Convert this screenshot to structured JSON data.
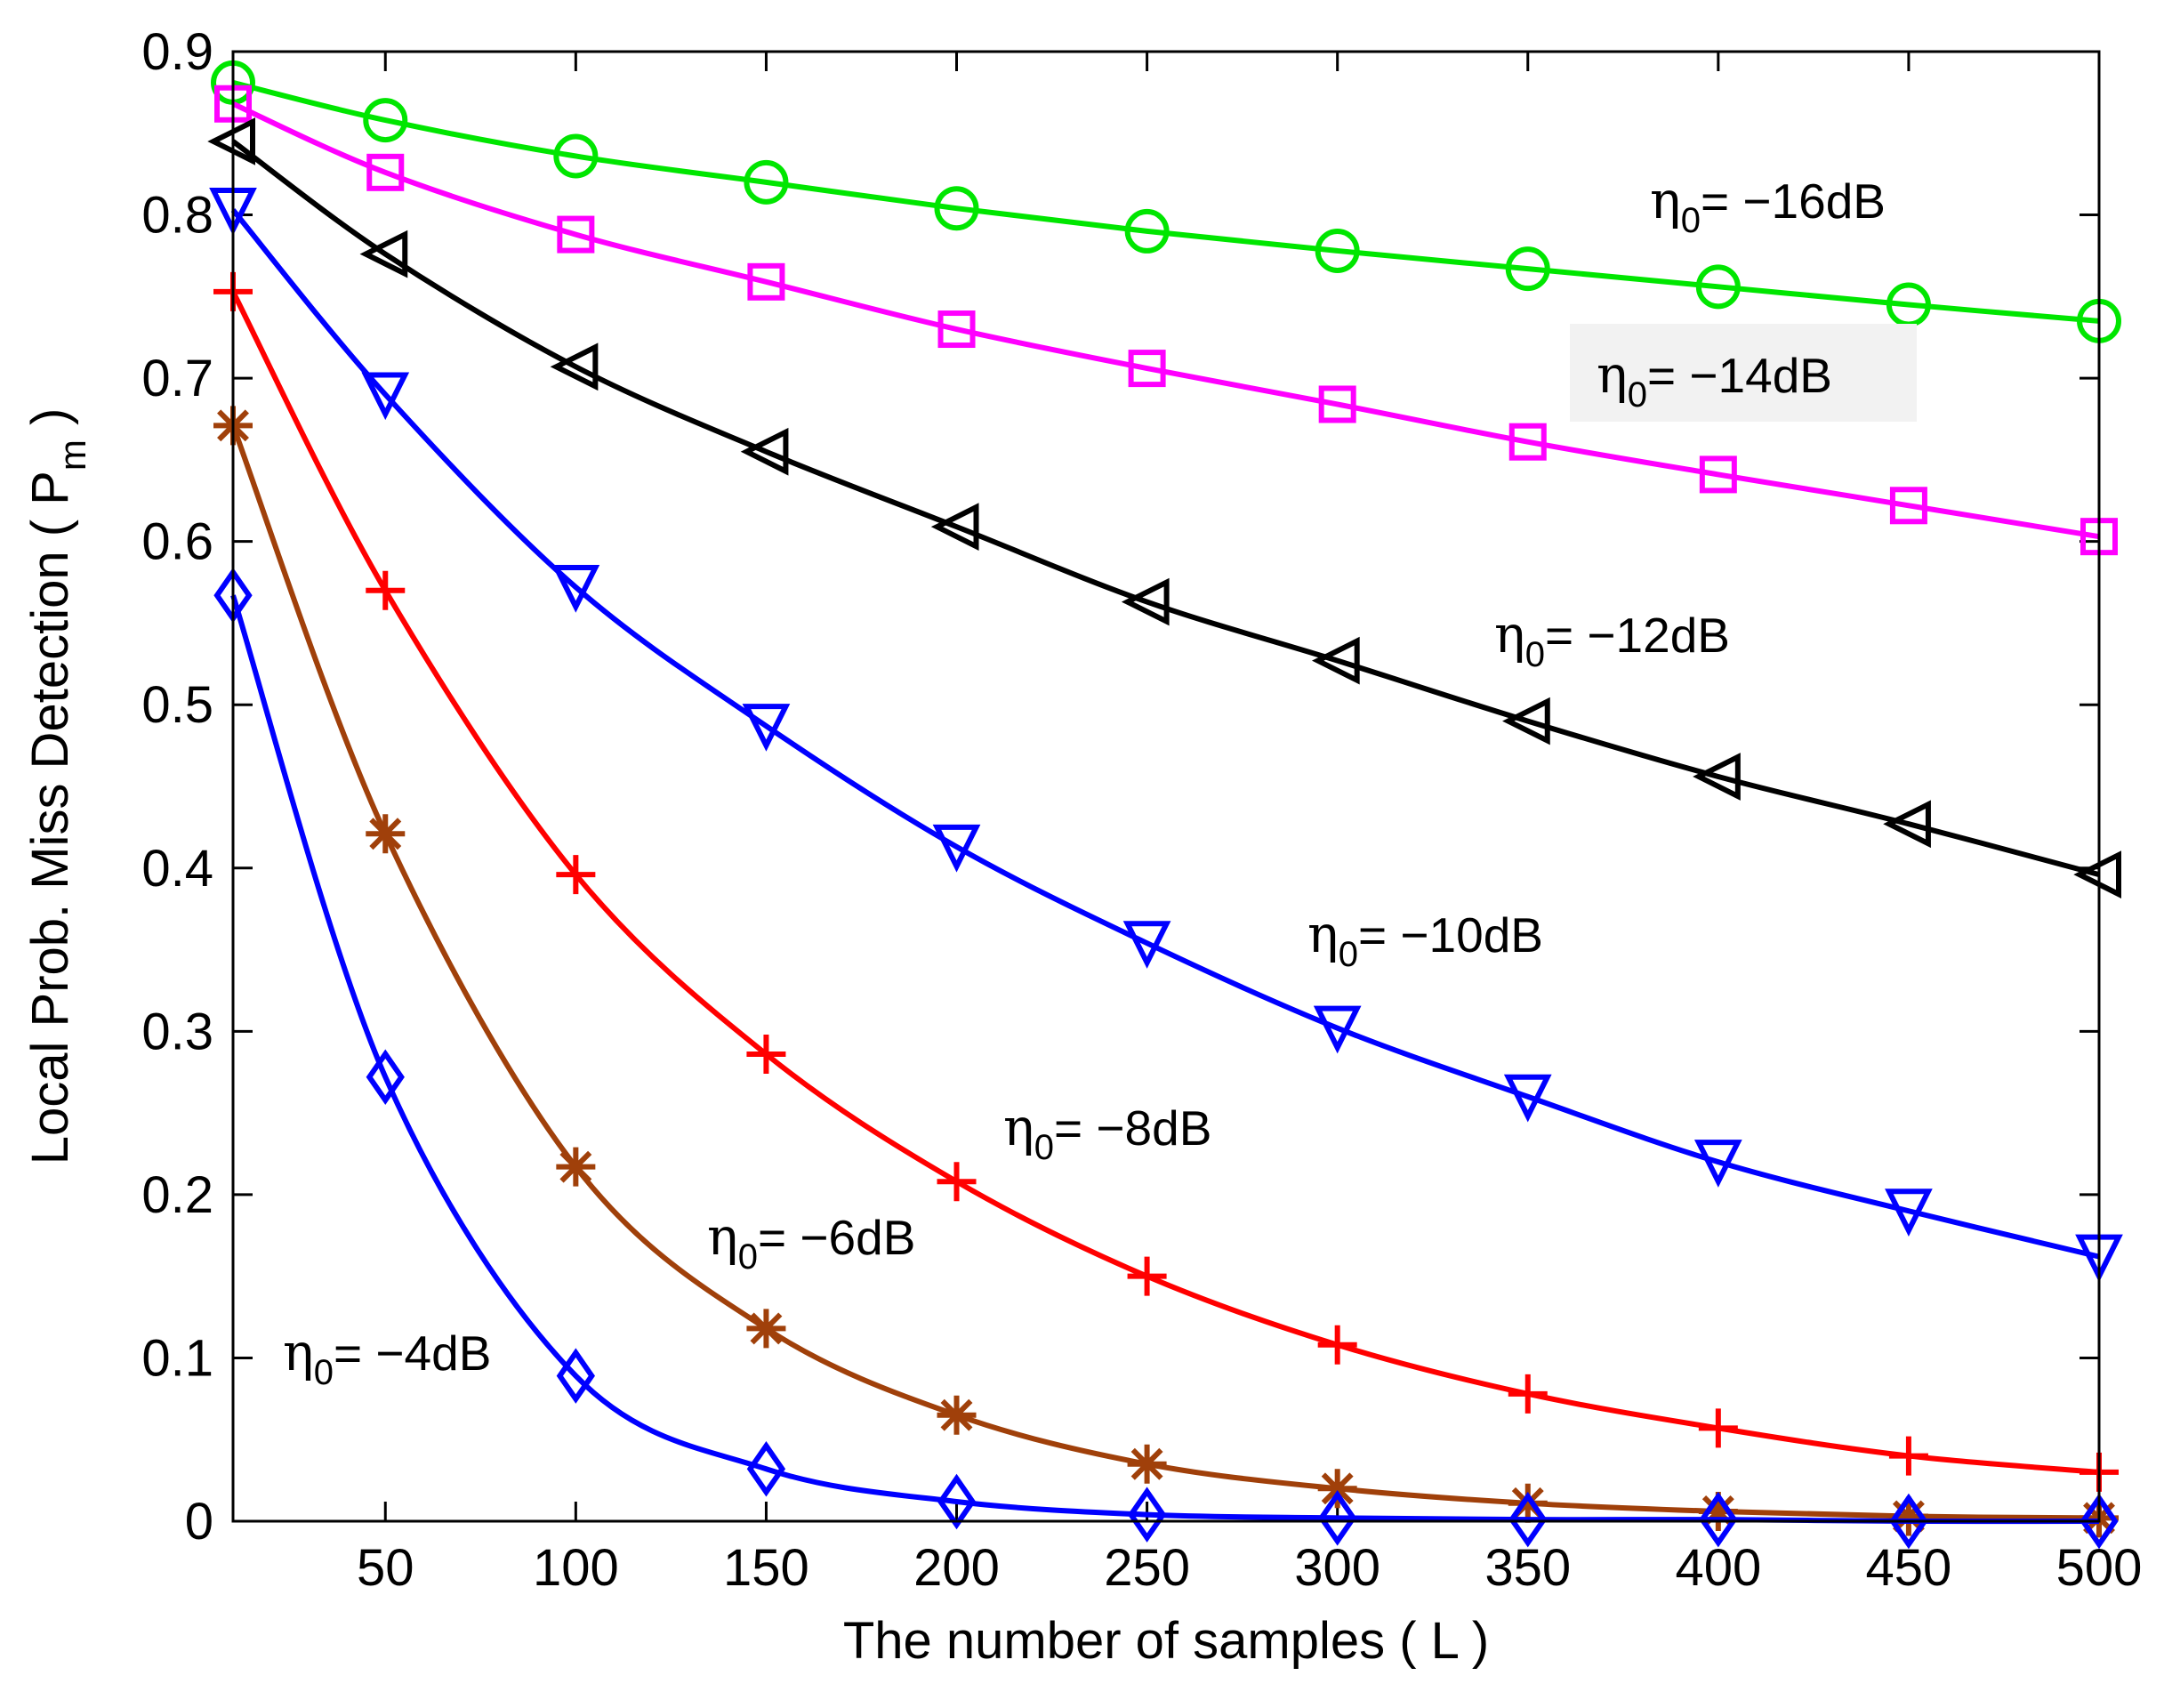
{
  "chart_data": {
    "type": "line",
    "title": "",
    "xlabel": "The number of samples ( L )",
    "ylabel_main": "Local Prob. Miss Detection ( P",
    "ylabel_sub": "m",
    "ylabel_end": " )",
    "xlim": [
      10,
      500
    ],
    "ylim": [
      0,
      0.9
    ],
    "xticks": [
      50,
      100,
      150,
      200,
      250,
      300,
      350,
      400,
      450,
      500
    ],
    "xtick_labels": [
      "50",
      "100",
      "150",
      "200",
      "250",
      "300",
      "350",
      "400",
      "450",
      "500"
    ],
    "yticks": [
      0,
      0.1,
      0.2,
      0.3,
      0.4,
      0.5,
      0.6,
      0.7,
      0.8,
      0.9
    ],
    "ytick_labels": [
      "0",
      "0.1",
      "0.2",
      "0.3",
      "0.4",
      "0.5",
      "0.6",
      "0.7",
      "0.8",
      "0.9"
    ],
    "grid": false,
    "x": [
      10,
      50,
      100,
      150,
      200,
      250,
      300,
      350,
      400,
      450,
      500
    ],
    "series": [
      {
        "name": "η0= −16dB",
        "color": "#00e600",
        "marker": "circle",
        "values": [
          0.881,
          0.858,
          0.836,
          0.82,
          0.804,
          0.79,
          0.778,
          0.767,
          0.756,
          0.745,
          0.735
        ]
      },
      {
        "name": "η0= −14dB",
        "color": "#ff00ff",
        "marker": "square",
        "values": [
          0.868,
          0.826,
          0.788,
          0.759,
          0.73,
          0.706,
          0.684,
          0.661,
          0.641,
          0.622,
          0.603
        ]
      },
      {
        "name": "η0= −12dB",
        "color": "#000000",
        "marker": "triangle-left",
        "values": [
          0.845,
          0.776,
          0.707,
          0.655,
          0.609,
          0.563,
          0.527,
          0.49,
          0.456,
          0.427,
          0.396
        ]
      },
      {
        "name": "η0= −10dB",
        "color": "#0000ff",
        "marker": "triangle-down",
        "values": [
          0.803,
          0.69,
          0.572,
          0.487,
          0.413,
          0.354,
          0.302,
          0.26,
          0.22,
          0.19,
          0.162
        ]
      },
      {
        "name": "η0= −8dB",
        "color": "#ff0000",
        "marker": "plus",
        "values": [
          0.753,
          0.57,
          0.396,
          0.286,
          0.208,
          0.15,
          0.108,
          0.078,
          0.057,
          0.04,
          0.03
        ]
      },
      {
        "name": "η0= −6dB",
        "color": "#a0400a",
        "marker": "asterisk",
        "values": [
          0.671,
          0.421,
          0.217,
          0.118,
          0.065,
          0.035,
          0.02,
          0.011,
          0.006,
          0.003,
          0.002
        ]
      },
      {
        "name": "η0= −4dB",
        "color": "#0000ff",
        "marker": "diamond",
        "values": [
          0.567,
          0.272,
          0.089,
          0.032,
          0.012,
          0.004,
          0.002,
          0.001,
          0.001,
          0.0,
          0.0
        ]
      }
    ],
    "annotations": [
      {
        "symbol": "η",
        "sub": "0",
        "text": "= −16dB",
        "series": 0
      },
      {
        "symbol": "η",
        "sub": "0",
        "text": "= −14dB",
        "series": 1
      },
      {
        "symbol": "η",
        "sub": "0",
        "text": "= −12dB",
        "series": 2
      },
      {
        "symbol": "η",
        "sub": "0",
        "text": "= −10dB",
        "series": 3
      },
      {
        "symbol": "η",
        "sub": "0",
        "text": "= −8dB",
        "series": 4
      },
      {
        "symbol": "η",
        "sub": "0",
        "text": "= −6dB",
        "series": 5
      },
      {
        "symbol": "η",
        "sub": "0",
        "text": "= −4dB",
        "series": 6
      }
    ]
  }
}
